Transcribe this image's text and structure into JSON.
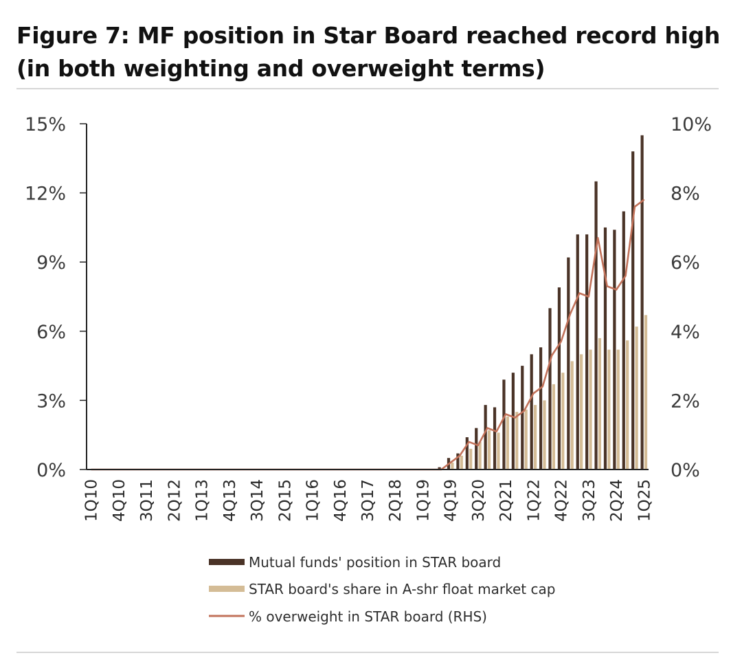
{
  "title": "Figure 7: MF position in Star Board reached record high (in both weighting and overweight terms)",
  "colors": {
    "mf_bar": "#4a3327",
    "share_bar": "#d4bc96",
    "overweight_line": "#c2725a",
    "axis": "#222222"
  },
  "chart_data": {
    "type": "bar",
    "title": "Figure 7: MF position in Star Board reached record high (in both weighting and overweight terms)",
    "xlabel": "",
    "ylabel": "",
    "ylim": [
      0,
      15
    ],
    "y2lim": [
      0,
      10
    ],
    "y_ticks": [
      "0%",
      "3%",
      "6%",
      "9%",
      "12%",
      "15%"
    ],
    "y2_ticks": [
      "0%",
      "2%",
      "4%",
      "6%",
      "8%",
      "10%"
    ],
    "x_tick_labels": [
      "1Q10",
      "4Q10",
      "3Q11",
      "2Q12",
      "1Q13",
      "4Q13",
      "3Q14",
      "2Q15",
      "1Q16",
      "4Q16",
      "3Q17",
      "2Q18",
      "1Q19",
      "4Q19",
      "3Q20",
      "2Q21",
      "1Q22",
      "4Q22",
      "3Q23",
      "2Q24",
      "1Q25"
    ],
    "x_start": "1Q10",
    "x_end": "1Q25",
    "grid": false,
    "legend_position": "bottom",
    "star_board_start": "3Q19",
    "series": [
      {
        "name": "Mutual funds' position in STAR board",
        "kind": "bar",
        "axis": "left",
        "values": [
          0.1,
          0.5,
          0.7,
          1.4,
          1.8,
          2.8,
          2.7,
          3.9,
          4.2,
          4.5,
          5.0,
          5.3,
          7.0,
          7.9,
          9.2,
          10.2,
          10.2,
          12.5,
          10.5,
          10.4,
          11.2,
          13.8,
          14.5
        ]
      },
      {
        "name": "STAR board's share in A-shr float market cap",
        "kind": "bar",
        "axis": "left",
        "values": [
          0.0,
          0.3,
          0.6,
          0.9,
          1.2,
          1.7,
          1.6,
          2.3,
          2.5,
          2.6,
          2.8,
          3.0,
          3.7,
          4.2,
          4.7,
          5.0,
          5.2,
          5.7,
          5.2,
          5.2,
          5.6,
          6.2,
          6.7
        ]
      },
      {
        "name": "% overweight in STAR board (RHS)",
        "kind": "line",
        "axis": "right",
        "values": [
          0.0,
          0.2,
          0.4,
          0.8,
          0.7,
          1.2,
          1.1,
          1.6,
          1.5,
          1.7,
          2.2,
          2.4,
          3.3,
          3.7,
          4.5,
          5.1,
          5.0,
          6.7,
          5.3,
          5.2,
          5.6,
          7.6,
          7.8
        ]
      }
    ]
  }
}
